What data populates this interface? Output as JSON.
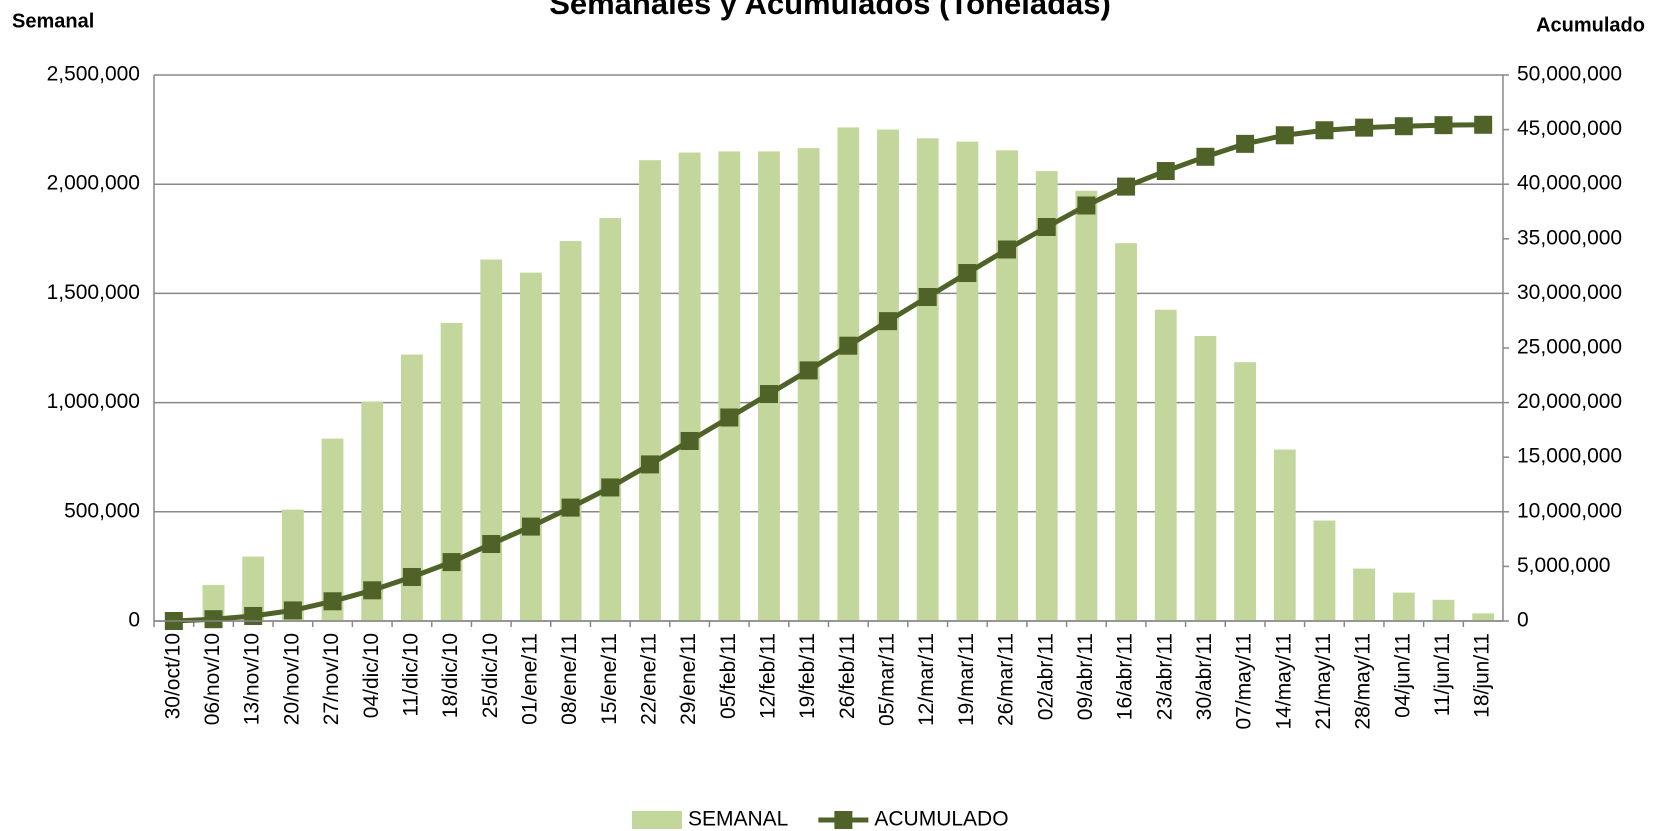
{
  "chart_data": {
    "type": "bar-line",
    "title": "Semanales y Acumulados (Toneladas)",
    "y_label": "Semanal",
    "y2_label": "Acumulado",
    "categories": [
      "30/oct/10",
      "06/nov/10",
      "13/nov/10",
      "20/nov/10",
      "27/nov/10",
      "04/dic/10",
      "11/dic/10",
      "18/dic/10",
      "25/dic/10",
      "01/ene/11",
      "08/ene/11",
      "15/ene/11",
      "22/ene/11",
      "29/ene/11",
      "05/feb/11",
      "12/feb/11",
      "19/feb/11",
      "26/feb/11",
      "05/mar/11",
      "12/mar/11",
      "19/mar/11",
      "26/mar/11",
      "02/abr/11",
      "09/abr/11",
      "16/abr/11",
      "23/abr/11",
      "30/abr/11",
      "07/may/11",
      "14/may/11",
      "21/may/11",
      "28/may/11",
      "04/jun/11",
      "11/jun/11",
      "18/jun/11"
    ],
    "series": [
      {
        "name": "SEMANAL",
        "type": "bar",
        "color": "#c3d69b",
        "values": [
          0,
          165000,
          295000,
          510000,
          835000,
          1005000,
          1220000,
          1365000,
          1655000,
          1595000,
          1740000,
          1845000,
          2110000,
          2145000,
          2150000,
          2150000,
          2165000,
          2260000,
          2250000,
          2210000,
          2195000,
          2155000,
          2060000,
          1970000,
          1730000,
          1425000,
          1305000,
          1185000,
          785000,
          460000,
          240000,
          130000,
          97000,
          35000
        ]
      },
      {
        "name": "ACUMULADO",
        "type": "line",
        "axis": "y2",
        "color": "#4f6228",
        "values": [
          0,
          165000,
          460000,
          970000,
          1805000,
          2810000,
          4030000,
          5395000,
          7050000,
          8645000,
          10385000,
          12230000,
          14340000,
          16485000,
          18635000,
          20785000,
          22950000,
          25210000,
          27460000,
          29670000,
          31865000,
          34020000,
          36080000,
          38050000,
          39780000,
          41205000,
          42510000,
          43695000,
          44480000,
          44940000,
          45180000,
          45310000,
          45407000,
          45442000
        ]
      }
    ],
    "ylim": [
      0,
      2500000
    ],
    "yticks": [
      0,
      {
        "value": 500000,
        "label": "500,000"
      },
      {
        "value": 1000000,
        "label": "1,000,000"
      },
      {
        "value": 1500000,
        "label": "1,500,000"
      },
      {
        "value": 2000000,
        "label": "2,000,000"
      },
      {
        "value": 2500000,
        "label": "2,500,000"
      }
    ],
    "y2lim": [
      0,
      50000000
    ],
    "y2ticks": [
      0,
      {
        "value": 5000000,
        "label": "5,000,000"
      },
      {
        "value": 10000000,
        "label": "10,000,000"
      },
      {
        "value": 15000000,
        "label": "15,000,000"
      },
      {
        "value": 20000000,
        "label": "20,000,000"
      },
      {
        "value": 25000000,
        "label": "25,000,000"
      },
      {
        "value": 30000000,
        "label": "30,000,000"
      },
      {
        "value": 35000000,
        "label": "35,000,000"
      },
      {
        "value": 40000000,
        "label": "40,000,000"
      },
      {
        "value": 45000000,
        "label": "45,000,000"
      },
      {
        "value": 50000000,
        "label": "50,000,000"
      }
    ],
    "grid": true,
    "legend": "bottom"
  }
}
